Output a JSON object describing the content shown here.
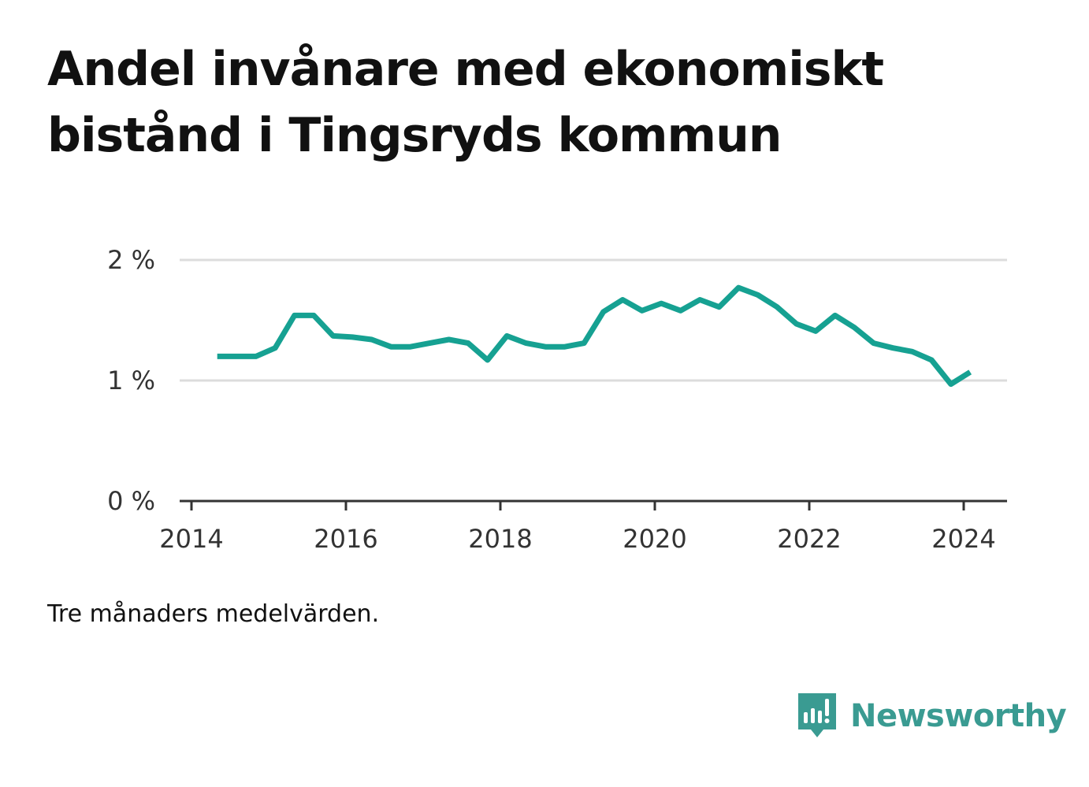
{
  "title": "Andel invånare med ekonomiskt bistånd i Tingsryds kommun",
  "note": "Tre månaders medelvärden.",
  "brand": {
    "name": "Newsworthy",
    "icon": "newsworthy-logo-icon",
    "color": "#3a9b92"
  },
  "chart_data": {
    "type": "line",
    "title": "Andel invånare med ekonomiskt bistånd i Tingsryds kommun",
    "xlabel": "",
    "ylabel": "",
    "xlim": [
      2014,
      2024.6
    ],
    "ylim": [
      0,
      2
    ],
    "x_ticks": [
      "2014",
      "2016",
      "2018",
      "2020",
      "2022",
      "2024"
    ],
    "y_ticks": [
      "0 %",
      "1 %",
      "2 %"
    ],
    "grid": true,
    "legend": "none",
    "line_color": "#16a192",
    "series": [
      {
        "name": "",
        "points": [
          [
            "2014-05",
            1.2
          ],
          [
            "2014-08",
            1.2
          ],
          [
            "2014-11",
            1.2
          ],
          [
            "2015-02",
            1.27
          ],
          [
            "2015-05",
            1.54
          ],
          [
            "2015-08",
            1.54
          ],
          [
            "2015-11",
            1.37
          ],
          [
            "2016-02",
            1.36
          ],
          [
            "2016-05",
            1.34
          ],
          [
            "2016-08",
            1.28
          ],
          [
            "2016-11",
            1.28
          ],
          [
            "2017-02",
            1.31
          ],
          [
            "2017-05",
            1.34
          ],
          [
            "2017-08",
            1.31
          ],
          [
            "2017-11",
            1.17
          ],
          [
            "2018-02",
            1.37
          ],
          [
            "2018-05",
            1.31
          ],
          [
            "2018-08",
            1.28
          ],
          [
            "2018-11",
            1.28
          ],
          [
            "2019-02",
            1.31
          ],
          [
            "2019-05",
            1.57
          ],
          [
            "2019-08",
            1.67
          ],
          [
            "2019-11",
            1.58
          ],
          [
            "2020-02",
            1.64
          ],
          [
            "2020-05",
            1.58
          ],
          [
            "2020-08",
            1.67
          ],
          [
            "2020-11",
            1.61
          ],
          [
            "2021-02",
            1.77
          ],
          [
            "2021-05",
            1.71
          ],
          [
            "2021-08",
            1.61
          ],
          [
            "2021-11",
            1.47
          ],
          [
            "2022-02",
            1.41
          ],
          [
            "2022-05",
            1.54
          ],
          [
            "2022-08",
            1.44
          ],
          [
            "2022-11",
            1.31
          ],
          [
            "2023-02",
            1.27
          ],
          [
            "2023-05",
            1.24
          ],
          [
            "2023-08",
            1.17
          ],
          [
            "2023-11",
            0.97
          ],
          [
            "2024-02",
            1.07
          ]
        ]
      }
    ]
  }
}
